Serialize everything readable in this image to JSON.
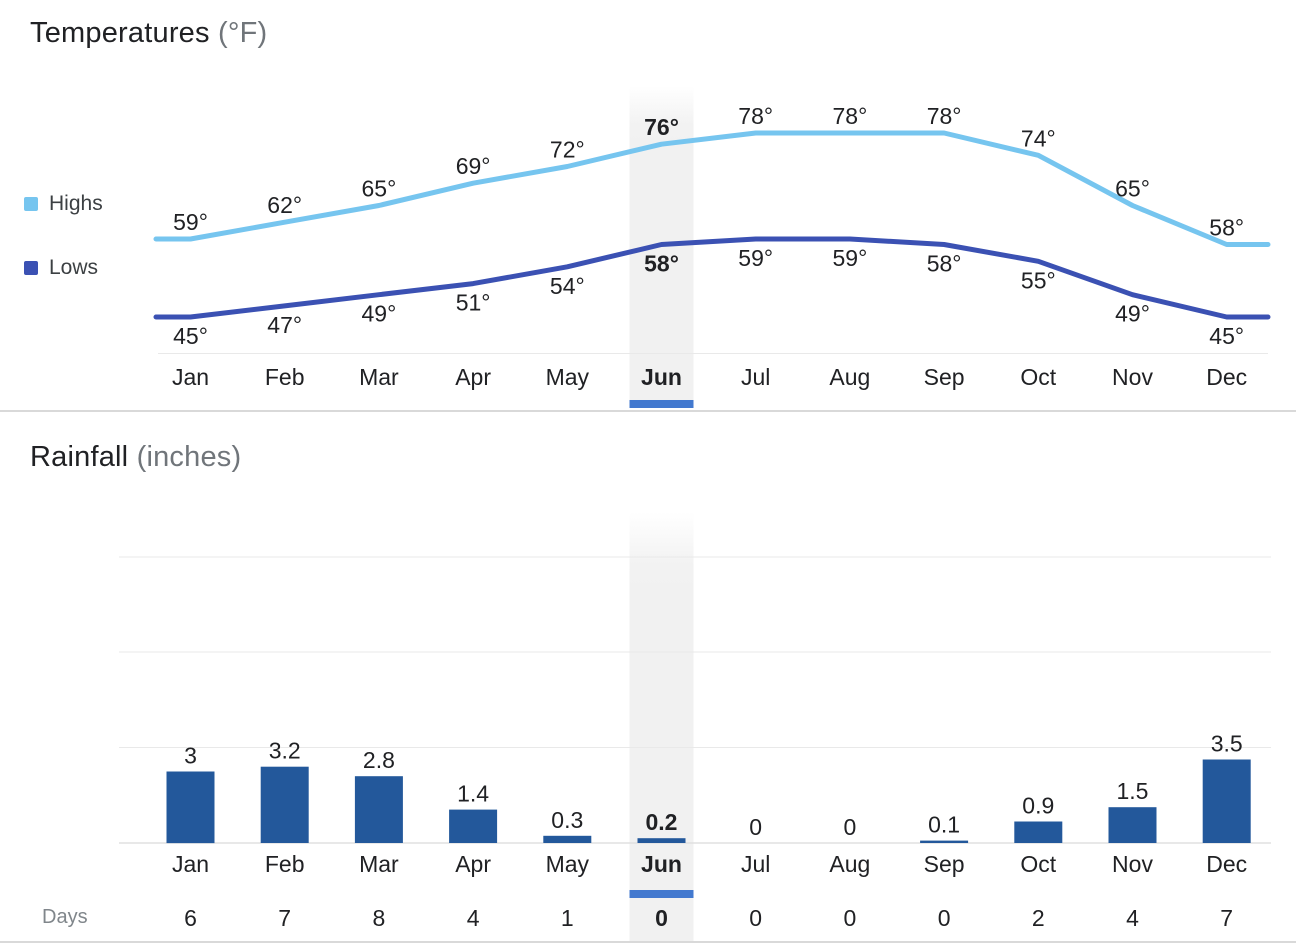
{
  "temperatures": {
    "title": "Temperatures",
    "unit": "(°F)"
  },
  "rainfall": {
    "title": "Rainfall",
    "unit": "(inches)"
  },
  "selected_month": "Jun",
  "colors": {
    "highs_line": "#76c5ef",
    "lows_line": "#3b51b3",
    "bar": "#23589b",
    "selected_underline": "#4379cf",
    "selected_band": "#f1f1f1",
    "gridline": "#e9e9e9",
    "baseline": "#e0e0e0",
    "divider": "#d9d9d9",
    "text_primary": "#202124",
    "text_muted": "#80868b"
  },
  "chart_data": [
    {
      "type": "line",
      "title": "Temperatures (°F)",
      "categories": [
        "Jan",
        "Feb",
        "Mar",
        "Apr",
        "May",
        "Jun",
        "Jul",
        "Aug",
        "Sep",
        "Oct",
        "Nov",
        "Dec"
      ],
      "series": [
        {
          "name": "Highs",
          "color": "#76c5ef",
          "values": [
            59,
            62,
            65,
            69,
            72,
            76,
            78,
            78,
            78,
            74,
            65,
            58
          ]
        },
        {
          "name": "Lows",
          "color": "#3b51b3",
          "values": [
            45,
            47,
            49,
            51,
            54,
            58,
            59,
            59,
            58,
            55,
            49,
            45
          ]
        }
      ],
      "value_suffix": "°",
      "legend_position": "left",
      "grid": "off",
      "selected_category": "Jun"
    },
    {
      "type": "bar",
      "title": "Rainfall (inches)",
      "categories": [
        "Jan",
        "Feb",
        "Mar",
        "Apr",
        "May",
        "Jun",
        "Jul",
        "Aug",
        "Sep",
        "Oct",
        "Nov",
        "Dec"
      ],
      "values": [
        3,
        3.2,
        2.8,
        1.4,
        0.3,
        0.2,
        0,
        0,
        0.1,
        0.9,
        1.5,
        3.5
      ],
      "ylim": [
        0,
        12
      ],
      "gridline_values": [
        4,
        8,
        12
      ],
      "grid": "on",
      "selected_category": "Jun",
      "secondary_row": {
        "label": "Days",
        "values": [
          6,
          7,
          8,
          4,
          1,
          0,
          0,
          0,
          0,
          2,
          4,
          7
        ]
      }
    }
  ]
}
